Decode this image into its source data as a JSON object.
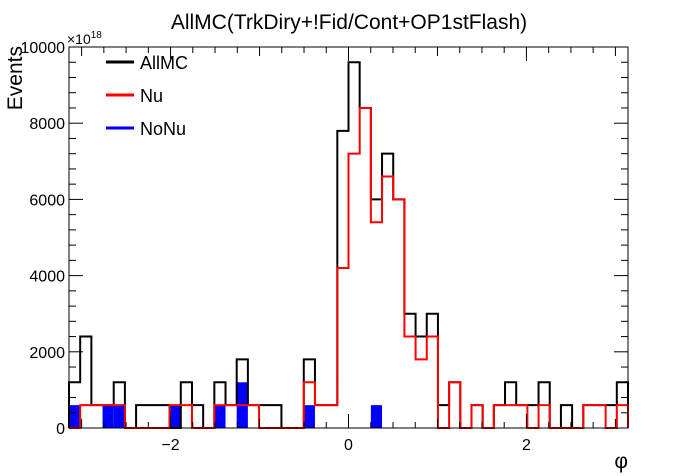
{
  "chart_data": {
    "type": "histogram",
    "title": "AllMC(TrkDiry+!Fid/Cont+OP1stFlash)",
    "xlabel": "φ",
    "ylabel": "Events",
    "y_multiplier": "×10",
    "y_multiplier_exp": "18",
    "xlim": [
      -3.1416,
      3.1416
    ],
    "ylim": [
      0,
      10000
    ],
    "x_ticks": [
      -2,
      0,
      2
    ],
    "y_ticks": [
      0,
      2000,
      4000,
      6000,
      8000,
      10000
    ],
    "bins": 50,
    "legend": {
      "position": "top-left",
      "entries": [
        {
          "label": "AllMC",
          "color": "#000000"
        },
        {
          "label": "Nu",
          "color": "#ff0000"
        },
        {
          "label": "NoNu",
          "color": "#0000ff"
        }
      ]
    },
    "series": [
      {
        "name": "AllMC",
        "style": "step",
        "color": "#000000",
        "values": [
          1200,
          2400,
          600,
          600,
          1200,
          0,
          600,
          600,
          600,
          0,
          1200,
          600,
          0,
          1200,
          600,
          1800,
          600,
          600,
          600,
          0,
          0,
          1800,
          600,
          600,
          7800,
          9600,
          8400,
          6000,
          7200,
          6000,
          3000,
          2400,
          3000,
          600,
          1200,
          0,
          600,
          0,
          600,
          1200,
          600,
          600,
          1200,
          0,
          600,
          0,
          600,
          600,
          600,
          1200
        ]
      },
      {
        "name": "Nu",
        "style": "step",
        "color": "#ff0000",
        "values": [
          0,
          600,
          600,
          600,
          600,
          0,
          0,
          0,
          0,
          600,
          600,
          0,
          0,
          600,
          600,
          600,
          600,
          0,
          0,
          0,
          0,
          1200,
          600,
          600,
          4200,
          7200,
          8400,
          5400,
          6600,
          6000,
          2400,
          1800,
          2400,
          0,
          1200,
          0,
          600,
          0,
          600,
          600,
          600,
          0,
          600,
          0,
          0,
          0,
          600,
          600,
          0,
          600
        ]
      },
      {
        "name": "NoNu",
        "style": "filled",
        "color": "#0000ff",
        "values": [
          600,
          0,
          0,
          600,
          600,
          0,
          0,
          0,
          0,
          600,
          0,
          0,
          0,
          600,
          0,
          1200,
          0,
          0,
          0,
          0,
          0,
          600,
          0,
          0,
          0,
          0,
          0,
          600,
          0,
          0,
          0,
          0,
          0,
          0,
          0,
          0,
          0,
          0,
          0,
          0,
          0,
          0,
          0,
          0,
          0,
          0,
          0,
          0,
          0,
          0
        ]
      }
    ]
  }
}
